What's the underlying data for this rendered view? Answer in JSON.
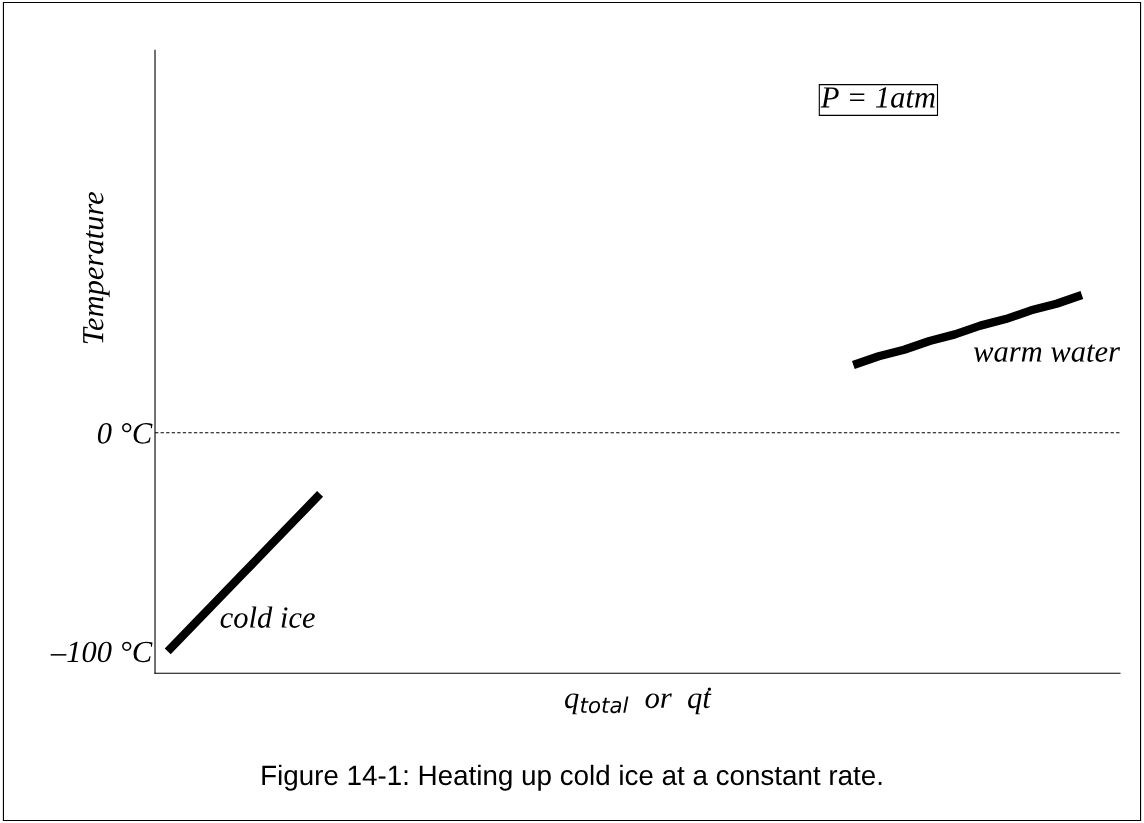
{
  "chart_data": {
    "type": "line",
    "ylabel": "Temperature",
    "xlabel": "q$_{total}$  or  q̇t",
    "categories": [
      null,
      null,
      null,
      null,
      null,
      null,
      null,
      null,
      null,
      null,
      null,
      null,
      null,
      null,
      null,
      null,
      null,
      null,
      null,
      null,
      null,
      null,
      null,
      null,
      null,
      null,
      null,
      null,
      null,
      null,
      null,
      null,
      null,
      null,
      null,
      null,
      null,
      null
    ],
    "series": [
      {
        "color": "#000000",
        "values": [
          -100,
          -88,
          -76,
          -64,
          -52,
          -40,
          -28,
          null,
          null,
          null,
          null,
          null,
          null,
          null,
          null,
          null,
          null,
          null,
          null,
          null,
          null,
          null,
          null,
          null,
          null,
          null,
          null,
          null,
          null,
          null,
          null,
          null,
          null,
          null,
          null,
          null,
          null,
          null
        ]
      },
      {
        "color": "#000000",
        "values": [
          null,
          null,
          null,
          null,
          null,
          null,
          null,
          null,
          null,
          null,
          null,
          null,
          null,
          null,
          null,
          null,
          null,
          null,
          null,
          null,
          null,
          null,
          null,
          null,
          null,
          null,
          null,
          31,
          35,
          38,
          42,
          45,
          49,
          52,
          56,
          59,
          63,
          null
        ]
      }
    ],
    "ylim": [
      -110,
      175
    ],
    "yticks": [
      {
        "value": -100,
        "label": "–100 °C"
      },
      {
        "value": 0,
        "label": "0 °C"
      }
    ],
    "tick_labels": "y",
    "ref_lines": [
      {
        "axis": "y",
        "value": 0,
        "label": null,
        "color": "#000000",
        "line_style": "dotted"
      }
    ],
    "annotations": [
      "cold ice",
      "warm water",
      "P = 1atm",
      "Figure 14-1: Heating up cold ice at a constant rate."
    ]
  }
}
